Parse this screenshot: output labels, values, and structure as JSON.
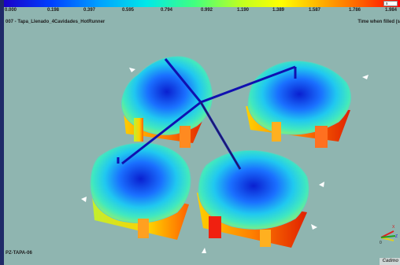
{
  "legend": {
    "ticks": [
      "0.000",
      "0.198",
      "0.397",
      "0.595",
      "0.794",
      "0.992",
      "1.190",
      "1.389",
      "1.587",
      "1.786",
      "1.984"
    ],
    "unit": "s",
    "colors": [
      "#1a00c8",
      "#0040ff",
      "#00a0ff",
      "#00e8e8",
      "#40ff80",
      "#c0ff20",
      "#ffff00",
      "#ffb000",
      "#ff6000",
      "#ff0000"
    ]
  },
  "header": {
    "model_title": "007 - Tapa_Llenado_4Cavidades_HotRunner",
    "result_title": "Time when filled (s"
  },
  "footer": {
    "part_label": "PZ-TAPA-06",
    "brand": "Cadmo"
  },
  "triad": {
    "x_label": "X",
    "y_label": "Y",
    "z_label": "Z",
    "origin_label": "0"
  }
}
